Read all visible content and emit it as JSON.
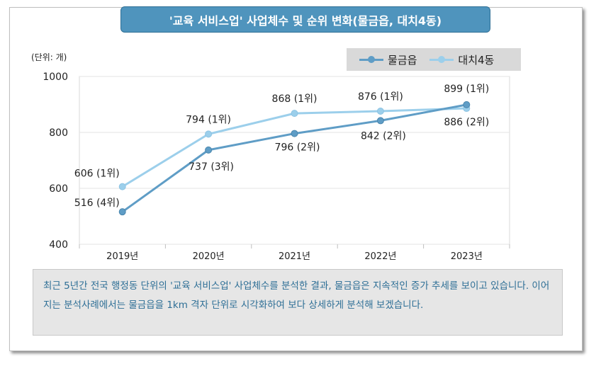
{
  "title": "'교육 서비스업' 사업체수 및 순위 변화(물금읍, 대치4동)",
  "unit_label": "(단위: 개)",
  "note": "최근 5년간 전국 행정동 단위의 '교육 서비스업' 사업체수를 분석한 결과, 물금읍은 지속적인 증가 추세를 보이고 있습니다. 이어지는 분석사례에서는 물금읍을 1km 격자 단위로 시각화하여 보다 상세하게 분석해 보겠습니다.",
  "chart_data": {
    "type": "line",
    "title": "'교육 서비스업' 사업체수 및 순위 변화(물금읍, 대치4동)",
    "ylabel": "(단위: 개)",
    "xlabel": "",
    "categories": [
      "2019년",
      "2020년",
      "2021년",
      "2022년",
      "2023년"
    ],
    "ylim": [
      400,
      1000
    ],
    "yticks": [
      400,
      600,
      800,
      1000
    ],
    "grid": true,
    "legend_position": "top-right",
    "series": [
      {
        "name": "물금읍",
        "color": "#5f9dc6",
        "values": [
          516,
          737,
          796,
          842,
          899
        ],
        "labels": [
          "516 (4위)",
          "737 (3위)",
          "796 (2위)",
          "842 (2위)",
          "899 (1위)"
        ]
      },
      {
        "name": "대치4동",
        "color": "#9ccfeb",
        "values": [
          606,
          794,
          868,
          876,
          886
        ],
        "labels": [
          "606 (1위)",
          "794 (1위)",
          "868 (1위)",
          "876 (1위)",
          "886 (2위)"
        ]
      }
    ]
  }
}
